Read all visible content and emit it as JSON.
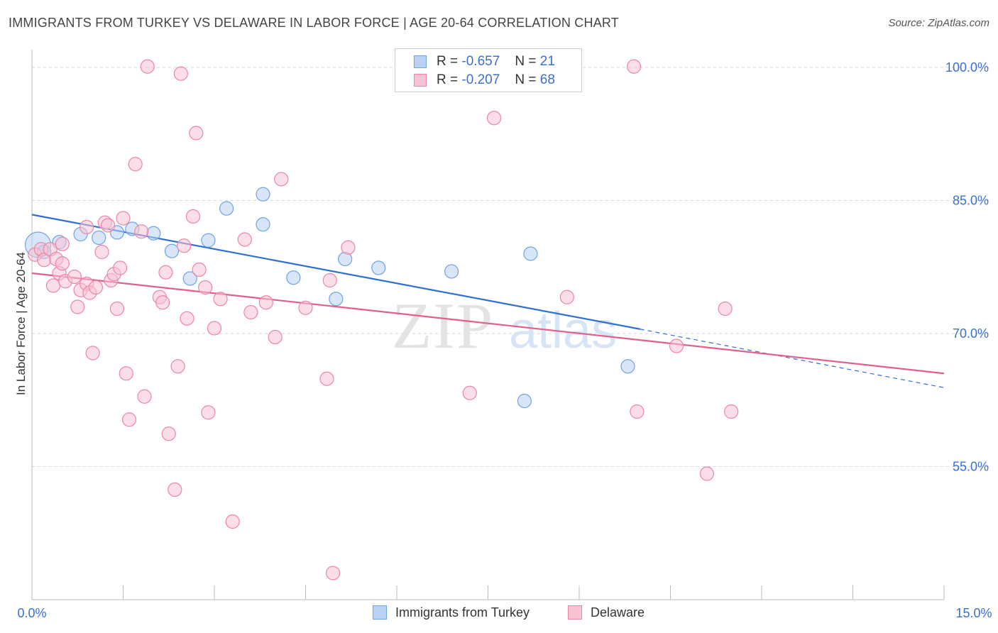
{
  "chart_data": {
    "type": "scatter",
    "title": "IMMIGRANTS FROM TURKEY VS DELAWARE IN LABOR FORCE | AGE 20-64 CORRELATION CHART",
    "source": "Source: ZipAtlas.com",
    "ylabel": "In Labor Force | Age 20-64",
    "xlabel": "",
    "xlim": [
      0,
      15
    ],
    "ylim": [
      40,
      102
    ],
    "x_tick_labels": [
      "0.0%",
      "15.0%"
    ],
    "y_ticks": [
      100,
      85,
      70,
      55
    ],
    "y_tick_labels": [
      "100.0%",
      "85.0%",
      "70.0%",
      "55.0%"
    ],
    "grid": "horizontal dashed",
    "watermark": "ZIPatlas",
    "legend": {
      "placement": "top-center",
      "entries": [
        {
          "r_label": "R =",
          "r": "-0.657",
          "n_label": "N =",
          "n": "21",
          "color": "#6fa3e8",
          "fill": "#b9d2f4"
        },
        {
          "r_label": "R =",
          "r": "-0.207",
          "n_label": "N =",
          "n": "68",
          "color": "#ee86a6",
          "fill": "#f8c3d3"
        }
      ]
    },
    "series": [
      {
        "name": "Immigrants from Turkey",
        "color": "#6fa3e8",
        "fill": "#b9d2f4",
        "trend": {
          "x0": 0.0,
          "y0": 83.4,
          "x1": 10.0,
          "y1": 70.5,
          "dashed_to_x": 15.0,
          "dashed_to_y": 63.9,
          "color": "#2f6fd0"
        },
        "points": [
          [
            0.1,
            80.0,
            3
          ],
          [
            0.2,
            79.2,
            1
          ],
          [
            0.45,
            80.3,
            1
          ],
          [
            0.8,
            81.2,
            1
          ],
          [
            1.1,
            80.8,
            1
          ],
          [
            1.4,
            81.4,
            1
          ],
          [
            1.65,
            81.8,
            1
          ],
          [
            2.0,
            81.3,
            1
          ],
          [
            2.3,
            79.3,
            1
          ],
          [
            2.6,
            76.2,
            1
          ],
          [
            2.9,
            80.5,
            1
          ],
          [
            3.2,
            84.1,
            1
          ],
          [
            3.8,
            82.3,
            1
          ],
          [
            3.8,
            85.7,
            1
          ],
          [
            4.3,
            76.3,
            1
          ],
          [
            5.0,
            73.9,
            1
          ],
          [
            5.15,
            78.4,
            1
          ],
          [
            5.7,
            77.4,
            1
          ],
          [
            6.9,
            77.0,
            1
          ],
          [
            8.2,
            79.0,
            1
          ],
          [
            8.1,
            62.4,
            1
          ],
          [
            9.8,
            66.3,
            1
          ]
        ]
      },
      {
        "name": "Delaware",
        "color": "#ee86a6",
        "fill": "#f8c3d3",
        "trend": {
          "x0": 0.0,
          "y0": 76.8,
          "x1": 15.0,
          "y1": 65.5,
          "color": "#e0608a"
        },
        "points": [
          [
            0.05,
            78.9,
            1
          ],
          [
            0.15,
            79.5,
            1
          ],
          [
            0.2,
            78.3,
            1
          ],
          [
            0.3,
            79.5,
            1
          ],
          [
            0.35,
            75.4,
            1
          ],
          [
            0.4,
            78.4,
            1
          ],
          [
            0.45,
            76.8,
            1
          ],
          [
            0.5,
            77.9,
            1
          ],
          [
            0.5,
            80.1,
            1
          ],
          [
            0.55,
            75.9,
            1
          ],
          [
            0.7,
            76.4,
            1
          ],
          [
            0.75,
            73.0,
            1
          ],
          [
            0.8,
            74.9,
            1
          ],
          [
            0.9,
            82.0,
            1
          ],
          [
            0.9,
            75.6,
            1
          ],
          [
            0.95,
            74.6,
            1
          ],
          [
            1.0,
            67.8,
            1
          ],
          [
            1.05,
            75.2,
            1
          ],
          [
            1.15,
            79.2,
            1
          ],
          [
            1.2,
            82.5,
            1
          ],
          [
            1.25,
            82.2,
            1
          ],
          [
            1.3,
            76.0,
            1
          ],
          [
            1.35,
            76.7,
            1
          ],
          [
            1.4,
            72.8,
            1
          ],
          [
            1.45,
            77.4,
            1
          ],
          [
            1.5,
            83.0,
            1
          ],
          [
            1.55,
            65.5,
            1
          ],
          [
            1.6,
            60.3,
            1
          ],
          [
            1.7,
            89.1,
            1
          ],
          [
            1.8,
            81.5,
            1
          ],
          [
            1.85,
            62.9,
            1
          ],
          [
            1.9,
            100.1,
            1
          ],
          [
            2.1,
            74.1,
            1
          ],
          [
            2.15,
            73.5,
            1
          ],
          [
            2.2,
            76.9,
            1
          ],
          [
            2.25,
            58.7,
            1
          ],
          [
            2.35,
            52.4,
            1
          ],
          [
            2.4,
            66.3,
            1
          ],
          [
            2.45,
            99.3,
            1
          ],
          [
            2.5,
            79.9,
            1
          ],
          [
            2.55,
            71.7,
            1
          ],
          [
            2.65,
            83.2,
            1
          ],
          [
            2.7,
            92.6,
            1
          ],
          [
            2.75,
            77.2,
            1
          ],
          [
            2.85,
            75.2,
            1
          ],
          [
            2.9,
            61.1,
            1
          ],
          [
            3.0,
            70.6,
            1
          ],
          [
            3.1,
            73.9,
            1
          ],
          [
            3.3,
            48.8,
            1
          ],
          [
            3.5,
            80.6,
            1
          ],
          [
            3.6,
            72.4,
            1
          ],
          [
            3.85,
            73.5,
            1
          ],
          [
            4.0,
            69.6,
            1
          ],
          [
            4.1,
            87.4,
            1
          ],
          [
            4.5,
            72.9,
            1
          ],
          [
            4.85,
            64.9,
            1
          ],
          [
            4.9,
            76.0,
            1
          ],
          [
            4.95,
            43.0,
            1
          ],
          [
            5.2,
            79.7,
            1
          ],
          [
            7.2,
            63.3,
            1
          ],
          [
            7.6,
            94.3,
            1
          ],
          [
            8.8,
            74.1,
            1
          ],
          [
            9.9,
            100.1,
            1
          ],
          [
            9.95,
            61.2,
            1
          ],
          [
            10.6,
            68.6,
            1
          ],
          [
            11.1,
            54.2,
            1
          ],
          [
            11.4,
            72.8,
            1
          ],
          [
            11.5,
            61.2,
            1
          ]
        ]
      }
    ]
  }
}
